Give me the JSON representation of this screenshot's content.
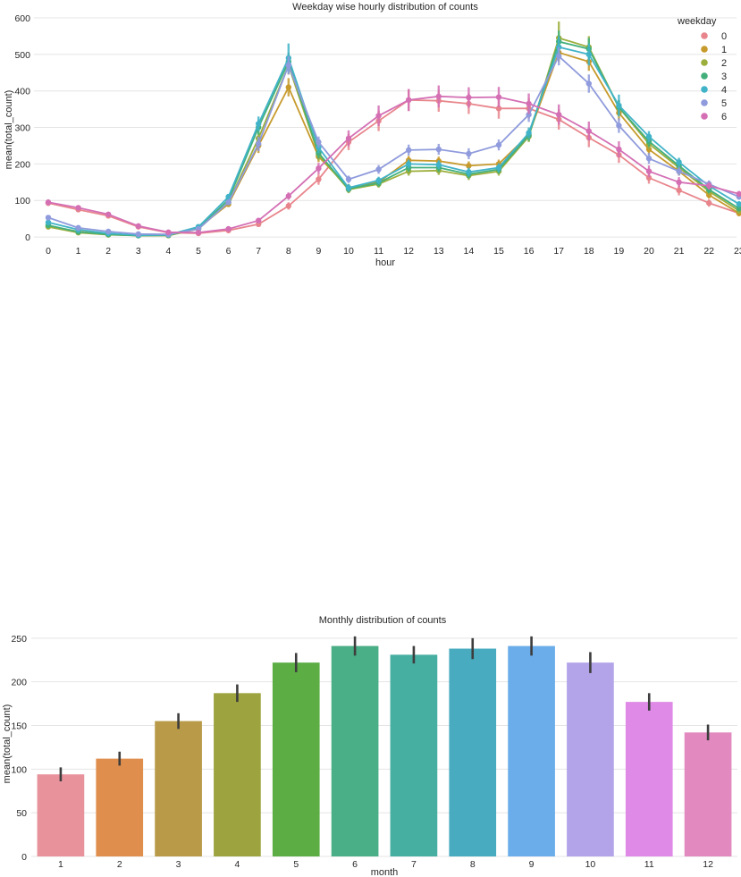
{
  "chart_data": [
    {
      "type": "line",
      "title": "Weekday wise hourly distribution of counts",
      "xlabel": "hour",
      "ylabel": "mean(total_count)",
      "ylim": [
        -12,
        600
      ],
      "yticks": [
        0,
        100,
        200,
        300,
        400,
        500,
        600
      ],
      "grid": true,
      "legend_title": "weekday",
      "legend_position": "top-right",
      "categories": [
        "0",
        "1",
        "2",
        "3",
        "4",
        "5",
        "6",
        "7",
        "8",
        "9",
        "10",
        "11",
        "12",
        "13",
        "14",
        "15",
        "16",
        "17",
        "18",
        "19",
        "20",
        "21",
        "22",
        "23"
      ],
      "series": [
        {
          "name": "0",
          "color": "#e8858c",
          "values": [
            93,
            75,
            58,
            28,
            12,
            10,
            18,
            35,
            85,
            158,
            260,
            318,
            375,
            373,
            365,
            352,
            352,
            322,
            272,
            225,
            162,
            128,
            93,
            65
          ],
          "errors": [
            8,
            6,
            6,
            5,
            3,
            2,
            4,
            6,
            10,
            15,
            22,
            28,
            30,
            30,
            28,
            28,
            28,
            28,
            26,
            22,
            16,
            14,
            10,
            8
          ]
        },
        {
          "name": "1",
          "color": "#c79a2c",
          "values": [
            30,
            15,
            8,
            4,
            5,
            25,
            90,
            250,
            410,
            220,
            135,
            150,
            210,
            208,
            195,
            200,
            280,
            505,
            480,
            340,
            240,
            180,
            115,
            65
          ],
          "errors": [
            4,
            3,
            2,
            2,
            2,
            3,
            8,
            20,
            25,
            15,
            10,
            10,
            12,
            12,
            12,
            12,
            15,
            25,
            25,
            20,
            15,
            12,
            10,
            8
          ]
        },
        {
          "name": "2",
          "color": "#9cae3c",
          "values": [
            28,
            12,
            6,
            4,
            4,
            22,
            95,
            270,
            470,
            225,
            130,
            145,
            180,
            182,
            168,
            180,
            275,
            545,
            520,
            355,
            255,
            190,
            125,
            72
          ],
          "errors": [
            4,
            3,
            2,
            2,
            2,
            3,
            8,
            20,
            25,
            15,
            10,
            10,
            12,
            12,
            12,
            12,
            15,
            45,
            30,
            20,
            15,
            12,
            10,
            8
          ]
        },
        {
          "name": "3",
          "color": "#43b07c",
          "values": [
            32,
            14,
            7,
            4,
            5,
            24,
            102,
            300,
            480,
            230,
            132,
            148,
            190,
            190,
            172,
            185,
            278,
            535,
            515,
            355,
            262,
            195,
            130,
            78
          ],
          "errors": [
            4,
            3,
            2,
            2,
            2,
            3,
            8,
            20,
            25,
            15,
            10,
            10,
            12,
            12,
            12,
            12,
            15,
            30,
            30,
            20,
            15,
            12,
            10,
            8
          ]
        },
        {
          "name": "4",
          "color": "#41b3c8",
          "values": [
            40,
            20,
            10,
            5,
            6,
            28,
            110,
            310,
            490,
            245,
            135,
            155,
            200,
            198,
            178,
            190,
            285,
            520,
            500,
            360,
            275,
            205,
            140,
            90
          ],
          "errors": [
            4,
            3,
            2,
            2,
            2,
            3,
            8,
            20,
            40,
            15,
            10,
            10,
            12,
            12,
            12,
            12,
            15,
            30,
            30,
            30,
            15,
            12,
            10,
            8
          ]
        },
        {
          "name": "5",
          "color": "#8f9bdc",
          "values": [
            53,
            25,
            15,
            8,
            7,
            22,
            95,
            255,
            470,
            260,
            158,
            185,
            238,
            240,
            228,
            252,
            335,
            495,
            420,
            305,
            215,
            180,
            145,
            110
          ],
          "errors": [
            5,
            4,
            3,
            2,
            2,
            3,
            8,
            20,
            25,
            15,
            10,
            12,
            15,
            15,
            15,
            15,
            20,
            25,
            25,
            20,
            15,
            12,
            10,
            8
          ]
        },
        {
          "name": "6",
          "color": "#d46fb4",
          "values": [
            95,
            80,
            62,
            30,
            13,
            12,
            22,
            45,
            112,
            188,
            270,
            332,
            375,
            385,
            382,
            383,
            365,
            335,
            290,
            240,
            180,
            150,
            140,
            118
          ],
          "errors": [
            8,
            6,
            6,
            5,
            3,
            2,
            4,
            6,
            10,
            15,
            22,
            28,
            30,
            30,
            28,
            28,
            28,
            28,
            26,
            22,
            16,
            14,
            10,
            8
          ]
        }
      ]
    },
    {
      "type": "bar",
      "title": "Monthly distribution of counts",
      "xlabel": "month",
      "ylabel": "mean(total_count)",
      "ylim": [
        0,
        258
      ],
      "yticks": [
        0,
        50,
        100,
        150,
        200,
        250
      ],
      "grid": true,
      "categories": [
        "1",
        "2",
        "3",
        "4",
        "5",
        "6",
        "7",
        "8",
        "9",
        "10",
        "11",
        "12"
      ],
      "values": [
        94,
        112,
        155,
        187,
        222,
        241,
        231,
        238,
        241,
        222,
        177,
        142
      ],
      "errors": [
        8,
        8,
        9,
        10,
        11,
        11,
        10,
        12,
        11,
        12,
        10,
        9
      ],
      "colors": [
        "#e8929c",
        "#e08e4d",
        "#b89a48",
        "#9da33e",
        "#5bad44",
        "#4aae86",
        "#47aea2",
        "#48abbf",
        "#6badea",
        "#b3a4ea",
        "#e08ae8",
        "#e28abf"
      ]
    }
  ]
}
